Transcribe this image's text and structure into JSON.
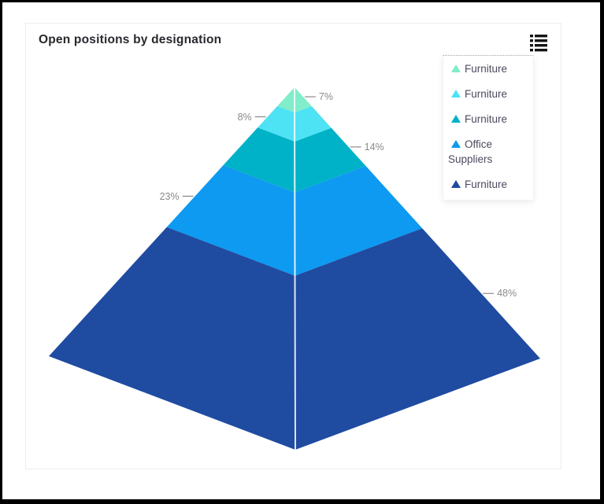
{
  "chart_data": {
    "type": "pyramid",
    "title": "Open positions by designation",
    "legend_position": "top-right",
    "total": 100,
    "label_color": "#8a8a8a",
    "series": [
      {
        "name": "Furniture",
        "value": 7,
        "percent_label": "7%",
        "color": "#81EDCA",
        "label_side": "right"
      },
      {
        "name": "Furniture",
        "value": 8,
        "percent_label": "8%",
        "color": "#4DE2F4",
        "label_side": "left"
      },
      {
        "name": "Furniture",
        "value": 14,
        "percent_label": "14%",
        "color": "#00B2C7",
        "label_side": "right"
      },
      {
        "name": "Office Suppliers",
        "value": 23,
        "percent_label": "23%",
        "color": "#0D9AF0",
        "label_side": "left"
      },
      {
        "name": "Furniture",
        "value": 48,
        "percent_label": "48%",
        "color": "#1F4BA1",
        "label_side": "right"
      }
    ]
  },
  "legend": {
    "items": [
      {
        "label": "Furniture",
        "color": "#81EDCA"
      },
      {
        "label": "Furniture",
        "color": "#4DE2F4"
      },
      {
        "label": "Furniture",
        "color": "#00B2C7"
      },
      {
        "label": "Office Suppliers",
        "color": "#0D9AF0"
      },
      {
        "label": "Furniture",
        "color": "#1F4BA1"
      }
    ],
    "toggle_icon": "list-icon"
  },
  "colors": {
    "title": "#28282e",
    "legend_text": "#4b4b60",
    "tick_line": "#757575",
    "card_border": "#ededed",
    "frame_border": "#000000",
    "center_edge": "#ffffff"
  }
}
